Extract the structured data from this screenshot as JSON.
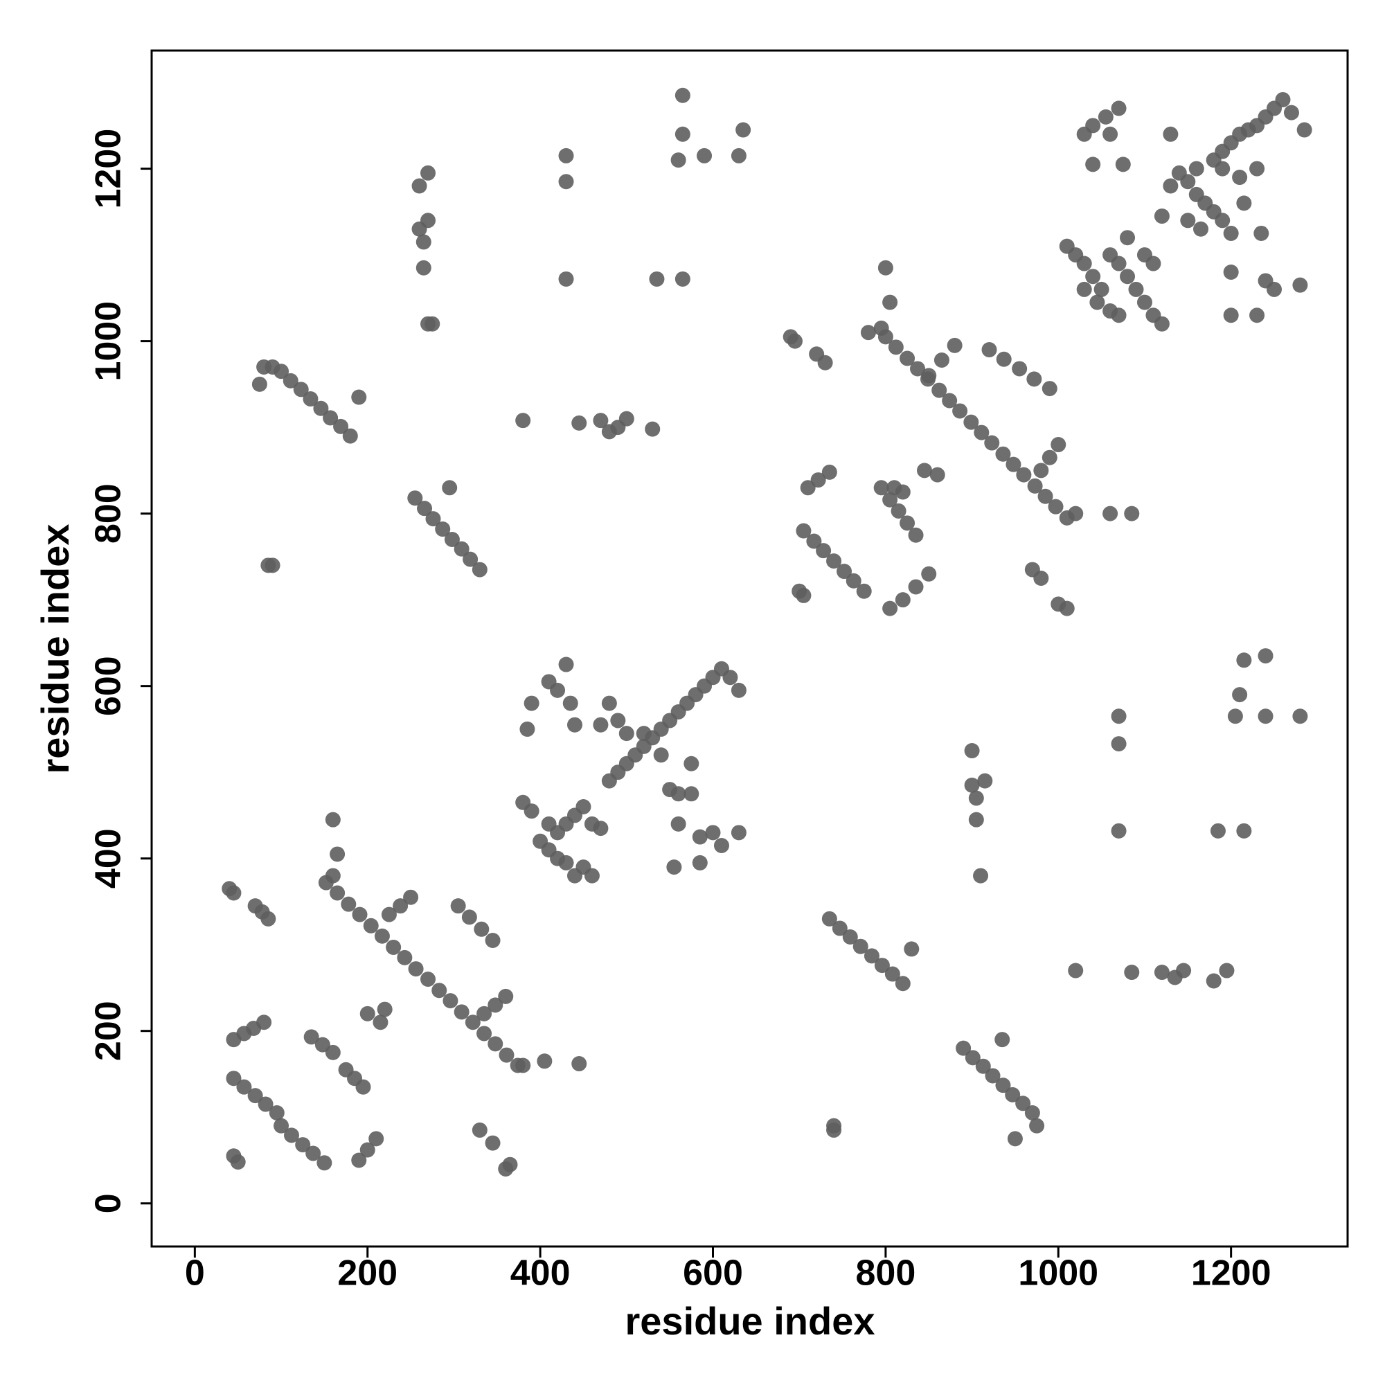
{
  "chart_data": {
    "type": "scatter",
    "x_label": "residue index",
    "y_label": "residue index",
    "color": "#5e5e5e",
    "xlim": [
      -50,
      1335
    ],
    "ylim": [
      -50,
      1337
    ],
    "xticks": [
      0,
      200,
      400,
      600,
      800,
      1000,
      1200
    ],
    "yticks": [
      0,
      200,
      400,
      600,
      800,
      1000,
      1200
    ],
    "grid": false,
    "x": [
      152,
      165,
      178,
      191,
      204,
      217,
      230,
      243,
      256,
      270,
      283,
      296,
      309,
      322,
      335,
      348,
      361,
      374,
      225,
      238,
      250,
      335,
      348,
      360,
      45,
      57,
      70,
      82,
      95,
      100,
      112,
      125,
      137,
      150,
      135,
      148,
      160,
      175,
      185,
      195,
      45,
      57,
      68,
      80,
      40,
      45,
      70,
      78,
      85,
      190,
      200,
      210,
      45,
      50,
      200,
      215,
      220,
      305,
      318,
      332,
      345,
      330,
      345,
      360,
      365,
      380,
      405,
      445,
      160,
      165,
      160,
      380,
      390,
      400,
      410,
      420,
      430,
      410,
      420,
      430,
      440,
      450,
      460,
      470,
      440,
      450,
      460,
      480,
      490,
      500,
      510,
      520,
      530,
      540,
      550,
      560,
      570,
      580,
      590,
      600,
      610,
      620,
      630,
      500,
      520,
      540,
      550,
      560,
      490,
      470,
      480,
      410,
      420,
      430,
      435,
      440,
      390,
      385,
      560,
      585,
      600,
      610,
      630,
      555,
      585,
      575,
      575,
      80,
      90,
      75,
      100,
      111,
      123,
      134,
      146,
      157,
      169,
      180,
      190,
      255,
      266,
      276,
      287,
      298,
      309,
      319,
      330,
      295,
      85,
      90,
      260,
      265,
      270,
      270,
      260,
      265,
      270,
      275,
      430,
      430,
      430,
      565,
      565,
      560,
      590,
      630,
      635,
      535,
      565,
      380,
      445,
      470,
      490,
      480,
      500,
      530,
      800,
      812,
      825,
      837,
      849,
      862,
      874,
      886,
      899,
      911,
      923,
      936,
      948,
      960,
      973,
      985,
      997,
      1010,
      850,
      865,
      880,
      980,
      990,
      1000,
      920,
      937,
      955,
      972,
      990,
      705,
      717,
      728,
      740,
      752,
      763,
      775,
      795,
      805,
      815,
      825,
      835,
      710,
      722,
      735,
      700,
      705,
      805,
      820,
      835,
      850,
      810,
      820,
      845,
      860,
      690,
      695,
      720,
      730,
      800,
      805,
      795,
      780,
      970,
      980,
      1000,
      1010,
      1020,
      1060,
      1085,
      1010,
      1020,
      1030,
      1040,
      1050,
      1030,
      1045,
      1060,
      1070,
      1060,
      1070,
      1080,
      1090,
      1100,
      1110,
      1120,
      1080,
      1100,
      1110,
      1120,
      1130,
      1140,
      1150,
      1160,
      1170,
      1180,
      1190,
      1200,
      1165,
      1150,
      1160,
      1180,
      1190,
      1200,
      1210,
      1220,
      1230,
      1240,
      1250,
      1260,
      1270,
      1285,
      1190,
      1210,
      1230,
      1030,
      1040,
      1055,
      1060,
      1070,
      1075,
      1040,
      1130,
      1200,
      1200,
      1230,
      1240,
      1250,
      1280,
      1235,
      1215,
      735,
      747,
      759,
      771,
      784,
      796,
      808,
      820,
      830,
      740,
      740,
      890,
      901,
      913,
      924,
      936,
      947,
      959,
      970,
      935,
      975,
      950,
      900,
      915,
      905,
      900,
      905,
      910,
      1020,
      1085,
      1120,
      1135,
      1145,
      1180,
      1195,
      1070,
      1070,
      1070,
      1215,
      1240,
      1210,
      1205,
      1240,
      1280,
      1185,
      1215
    ],
    "y": [
      372,
      360,
      347,
      335,
      322,
      310,
      297,
      285,
      272,
      260,
      247,
      235,
      222,
      210,
      197,
      185,
      172,
      160,
      335,
      345,
      355,
      220,
      230,
      240,
      145,
      135,
      125,
      115,
      105,
      90,
      79,
      68,
      58,
      47,
      193,
      184,
      175,
      155,
      145,
      135,
      190,
      197,
      203,
      210,
      365,
      360,
      345,
      338,
      330,
      50,
      62,
      75,
      55,
      48,
      220,
      210,
      225,
      345,
      332,
      318,
      305,
      85,
      70,
      40,
      45,
      160,
      165,
      162,
      445,
      405,
      380,
      465,
      455,
      420,
      410,
      400,
      395,
      440,
      430,
      440,
      450,
      460,
      440,
      435,
      380,
      390,
      380,
      490,
      500,
      510,
      520,
      530,
      540,
      550,
      560,
      570,
      580,
      590,
      600,
      610,
      620,
      610,
      595,
      545,
      545,
      520,
      480,
      475,
      560,
      555,
      580,
      605,
      595,
      625,
      580,
      555,
      580,
      550,
      440,
      425,
      430,
      415,
      430,
      390,
      395,
      475,
      510,
      970,
      970,
      950,
      965,
      954,
      944,
      933,
      922,
      911,
      901,
      890,
      935,
      818,
      806,
      794,
      782,
      770,
      759,
      747,
      735,
      830,
      740,
      740,
      1130,
      1115,
      1140,
      1195,
      1180,
      1085,
      1020,
      1020,
      1215,
      1185,
      1072,
      1285,
      1240,
      1210,
      1215,
      1215,
      1245,
      1072,
      1072,
      908,
      905,
      908,
      900,
      895,
      910,
      898,
      1005,
      993,
      980,
      968,
      956,
      943,
      931,
      919,
      906,
      894,
      882,
      869,
      857,
      845,
      832,
      820,
      808,
      795,
      960,
      978,
      995,
      850,
      865,
      880,
      990,
      979,
      968,
      956,
      945,
      780,
      768,
      757,
      745,
      733,
      722,
      710,
      830,
      816,
      803,
      789,
      775,
      830,
      839,
      848,
      710,
      705,
      690,
      700,
      715,
      730,
      830,
      825,
      850,
      845,
      1005,
      1000,
      985,
      975,
      1085,
      1045,
      1015,
      1010,
      735,
      725,
      695,
      690,
      800,
      800,
      800,
      1110,
      1100,
      1090,
      1075,
      1060,
      1060,
      1045,
      1035,
      1030,
      1100,
      1090,
      1075,
      1060,
      1045,
      1030,
      1020,
      1120,
      1100,
      1090,
      1145,
      1180,
      1195,
      1185,
      1170,
      1160,
      1150,
      1140,
      1125,
      1130,
      1140,
      1200,
      1210,
      1220,
      1230,
      1240,
      1245,
      1250,
      1260,
      1270,
      1280,
      1265,
      1245,
      1200,
      1190,
      1200,
      1240,
      1250,
      1260,
      1240,
      1270,
      1205,
      1205,
      1240,
      1080,
      1030,
      1030,
      1070,
      1060,
      1065,
      1125,
      1160,
      330,
      319,
      309,
      298,
      287,
      276,
      266,
      255,
      295,
      90,
      85,
      180,
      169,
      159,
      148,
      137,
      126,
      116,
      105,
      190,
      90,
      75,
      485,
      490,
      470,
      525,
      445,
      380,
      270,
      268,
      268,
      262,
      270,
      258,
      270,
      565,
      533,
      432,
      630,
      635,
      590,
      565,
      565,
      565,
      432,
      432
    ]
  }
}
